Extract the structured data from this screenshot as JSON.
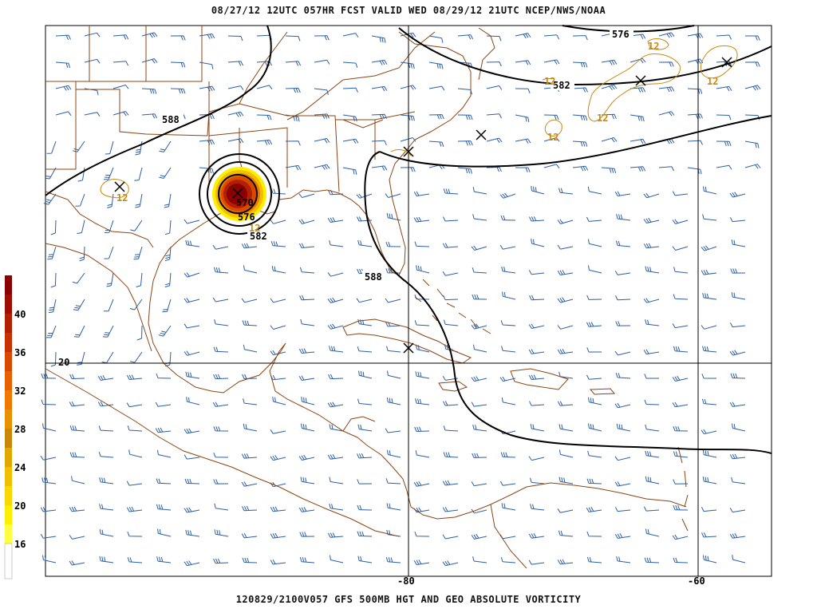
{
  "header": {
    "title": "08/27/12 12UTC  057HR  FCST VALID WED 08/29/12 21UTC  NCEP/NWS/NOAA"
  },
  "footer": {
    "title": "120829/2100V057 GFS 500MB HGT AND GEO ABSOLUTE VORTICITY"
  },
  "colorbar": {
    "labels": [
      "40",
      "36",
      "32",
      "28",
      "24",
      "20",
      "16"
    ],
    "colors": [
      "#8b0000",
      "#b22000",
      "#d94a00",
      "#f07800",
      "#c8860a",
      "#f0c000",
      "#ffee00",
      "#ffffff"
    ]
  },
  "gridlabels": {
    "lat20": "20",
    "lon80": "-80",
    "lon60": "-60"
  },
  "contours": {
    "c576": "576",
    "c582": "582",
    "c588": "588",
    "c570": "570"
  },
  "vorticity_labels": {
    "v12": "12"
  },
  "colors": {
    "coast": "#8b4513",
    "barb": "#2a5fa8",
    "contour": "#000000",
    "vort": "#c88a10"
  }
}
